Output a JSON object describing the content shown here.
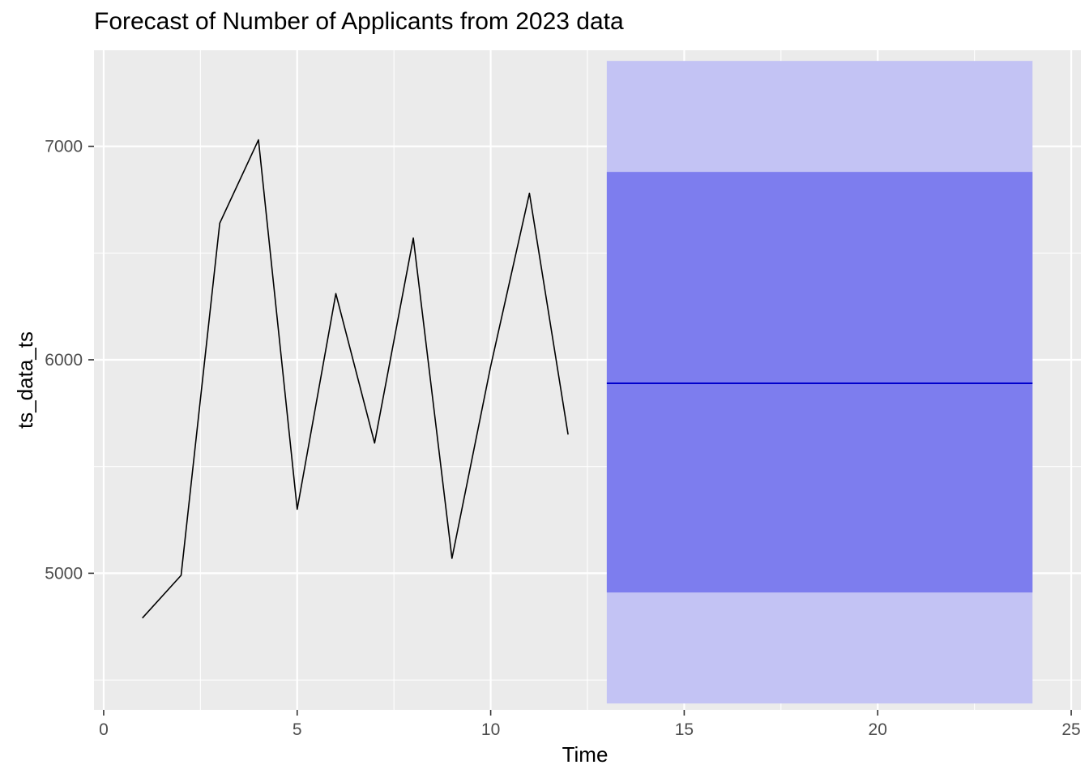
{
  "chart_data": {
    "type": "line",
    "title": "Forecast of Number of Applicants from 2023 data",
    "xlabel": "Time",
    "ylabel": "ts_data_ts",
    "xlim": [
      -0.25,
      25.25
    ],
    "ylim": [
      4360,
      7450
    ],
    "x_ticks": [
      0,
      5,
      10,
      15,
      20,
      25
    ],
    "x_tick_labels": [
      "0",
      "5",
      "10",
      "15",
      "20",
      "25"
    ],
    "y_ticks": [
      5000,
      6000,
      7000
    ],
    "y_tick_labels": [
      "5000",
      "6000",
      "7000"
    ],
    "grid": true,
    "legend": "none",
    "series": [
      {
        "x": [
          1,
          2,
          3,
          4,
          5,
          6,
          7,
          8,
          9,
          10,
          11,
          12
        ],
        "values": [
          4790,
          4990,
          6640,
          7030,
          5300,
          6310,
          5610,
          6570,
          5070,
          5970,
          6780,
          5650
        ]
      }
    ],
    "forecast": {
      "x_start": 13,
      "x_end": 24,
      "mean": 5890,
      "interval_80": [
        4910,
        6880
      ],
      "interval_95": [
        4390,
        7400
      ]
    },
    "colors": {
      "panel": "#EBEBEB",
      "grid": "#FFFFFF",
      "observed_line": "#000000",
      "forecast_line": "#0000CC",
      "band_80": "#7D7DEE",
      "band_95": "#C3C3F4",
      "tick_text": "#4D4D4D"
    }
  }
}
